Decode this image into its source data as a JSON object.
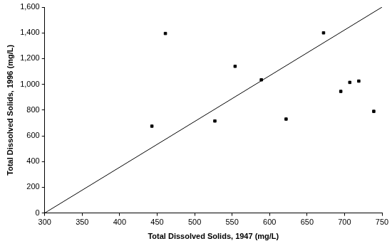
{
  "chart_data": {
    "type": "scatter",
    "x_label": "Total Dissolved Solids, 1947 (mg/L)",
    "y_label": "Total Dissolved Solids, 1996 (mg/L)",
    "x": [
      443,
      461,
      527,
      554,
      589,
      622,
      672,
      695,
      707,
      719,
      739
    ],
    "values": [
      675,
      1395,
      715,
      1140,
      1035,
      730,
      1400,
      945,
      1015,
      1025,
      790
    ],
    "color": "#000000",
    "marker": "square",
    "reference_line": {
      "x": [
        300,
        750
      ],
      "values": [
        0,
        1600
      ],
      "color": "#000000",
      "line_style": "solid"
    },
    "xlim": [
      300,
      750
    ],
    "xticks": [
      300,
      350,
      400,
      450,
      500,
      550,
      600,
      650,
      700,
      750
    ],
    "ylim": [
      0,
      1600
    ],
    "yticks": [
      0,
      200,
      400,
      600,
      800,
      1000,
      1200,
      1400,
      1600
    ],
    "grid": false
  }
}
